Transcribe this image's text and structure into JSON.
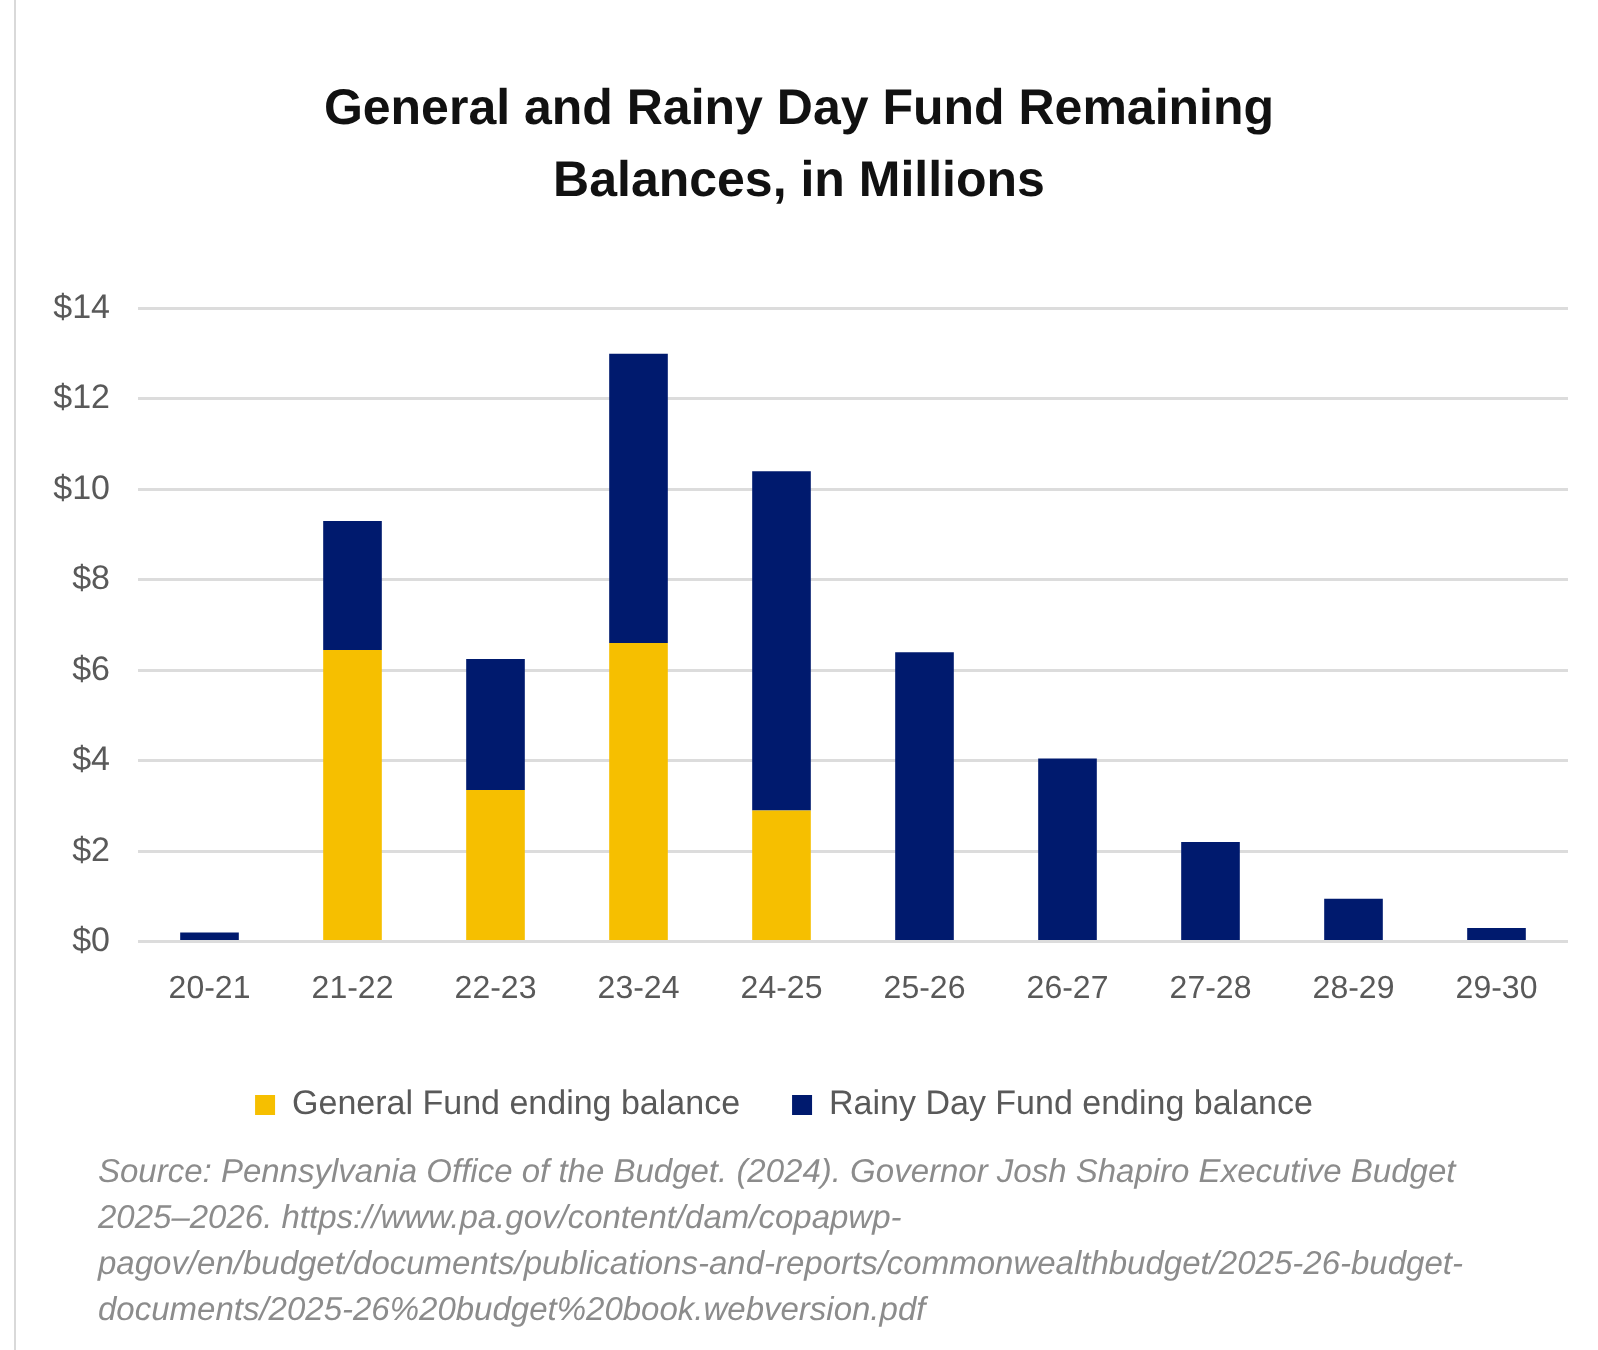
{
  "chart_data": {
    "type": "bar",
    "title": "General and Rainy Day Fund Remaining Balances, in Millions",
    "categories": [
      "20-21",
      "21-22",
      "22-23",
      "23-24",
      "24-25",
      "25-26",
      "26-27",
      "27-28",
      "28-29",
      "29-30"
    ],
    "series": [
      {
        "name": "General Fund ending balance",
        "color": "#f6bf00",
        "values": [
          null,
          6.45,
          3.35,
          6.6,
          2.9,
          null,
          null,
          null,
          null,
          null
        ]
      },
      {
        "name": "Rainy Day Fund ending balance",
        "color": "#001a6e",
        "values": [
          0.2,
          2.85,
          2.9,
          6.4,
          7.5,
          6.4,
          4.05,
          2.2,
          0.95,
          0.3
        ]
      }
    ],
    "stacked": true,
    "ylim": [
      0,
      14
    ],
    "yticks": [
      {
        "value": 0,
        "label": "$0"
      },
      {
        "value": 2,
        "label": "$2"
      },
      {
        "value": 4,
        "label": "$4"
      },
      {
        "value": 6,
        "label": "$6"
      },
      {
        "value": 8,
        "label": "$8"
      },
      {
        "value": 10,
        "label": "$10"
      },
      {
        "value": 12,
        "label": "$12"
      },
      {
        "value": 14,
        "label": "$14"
      }
    ],
    "grid": "y",
    "legend": "bottom",
    "annotations": [
      "Source: Pennsylvania Office of the Budget. (2024). Governor Josh Shapiro Executive Budget 2025–2026. https://www.pa.gov/content/dam/copapwp-pagov/en/budget/documents/publications-and-reports/commonwealthbudget/2025-26-budget-documents/2025-26%20budget%20book.webversion.pdf"
    ]
  }
}
